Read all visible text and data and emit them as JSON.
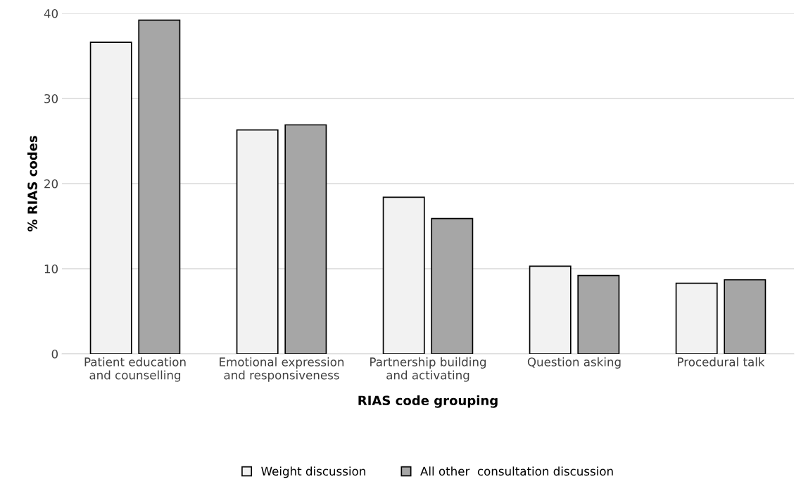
{
  "chart_data": {
    "type": "bar",
    "xlabel": "RIAS code grouping",
    "ylabel": "% RIAS codes",
    "categories": [
      "Patient education\nand counselling",
      "Emotional expression\nand responsiveness",
      "Partnership building\nand activating",
      "Question asking",
      "Procedural talk"
    ],
    "series": [
      {
        "name": "Weight discussion",
        "color": "#f2f2f2",
        "values": [
          36.6,
          26.3,
          18.4,
          10.3,
          8.3
        ]
      },
      {
        "name": "All other  consultation discussion",
        "color": "#a6a6a6",
        "values": [
          39.2,
          26.9,
          15.9,
          9.2,
          8.7
        ]
      }
    ],
    "ylim": [
      0,
      40
    ],
    "yticks": [
      0,
      10,
      20,
      30,
      40
    ],
    "grid": "y",
    "legend": "bottom"
  }
}
